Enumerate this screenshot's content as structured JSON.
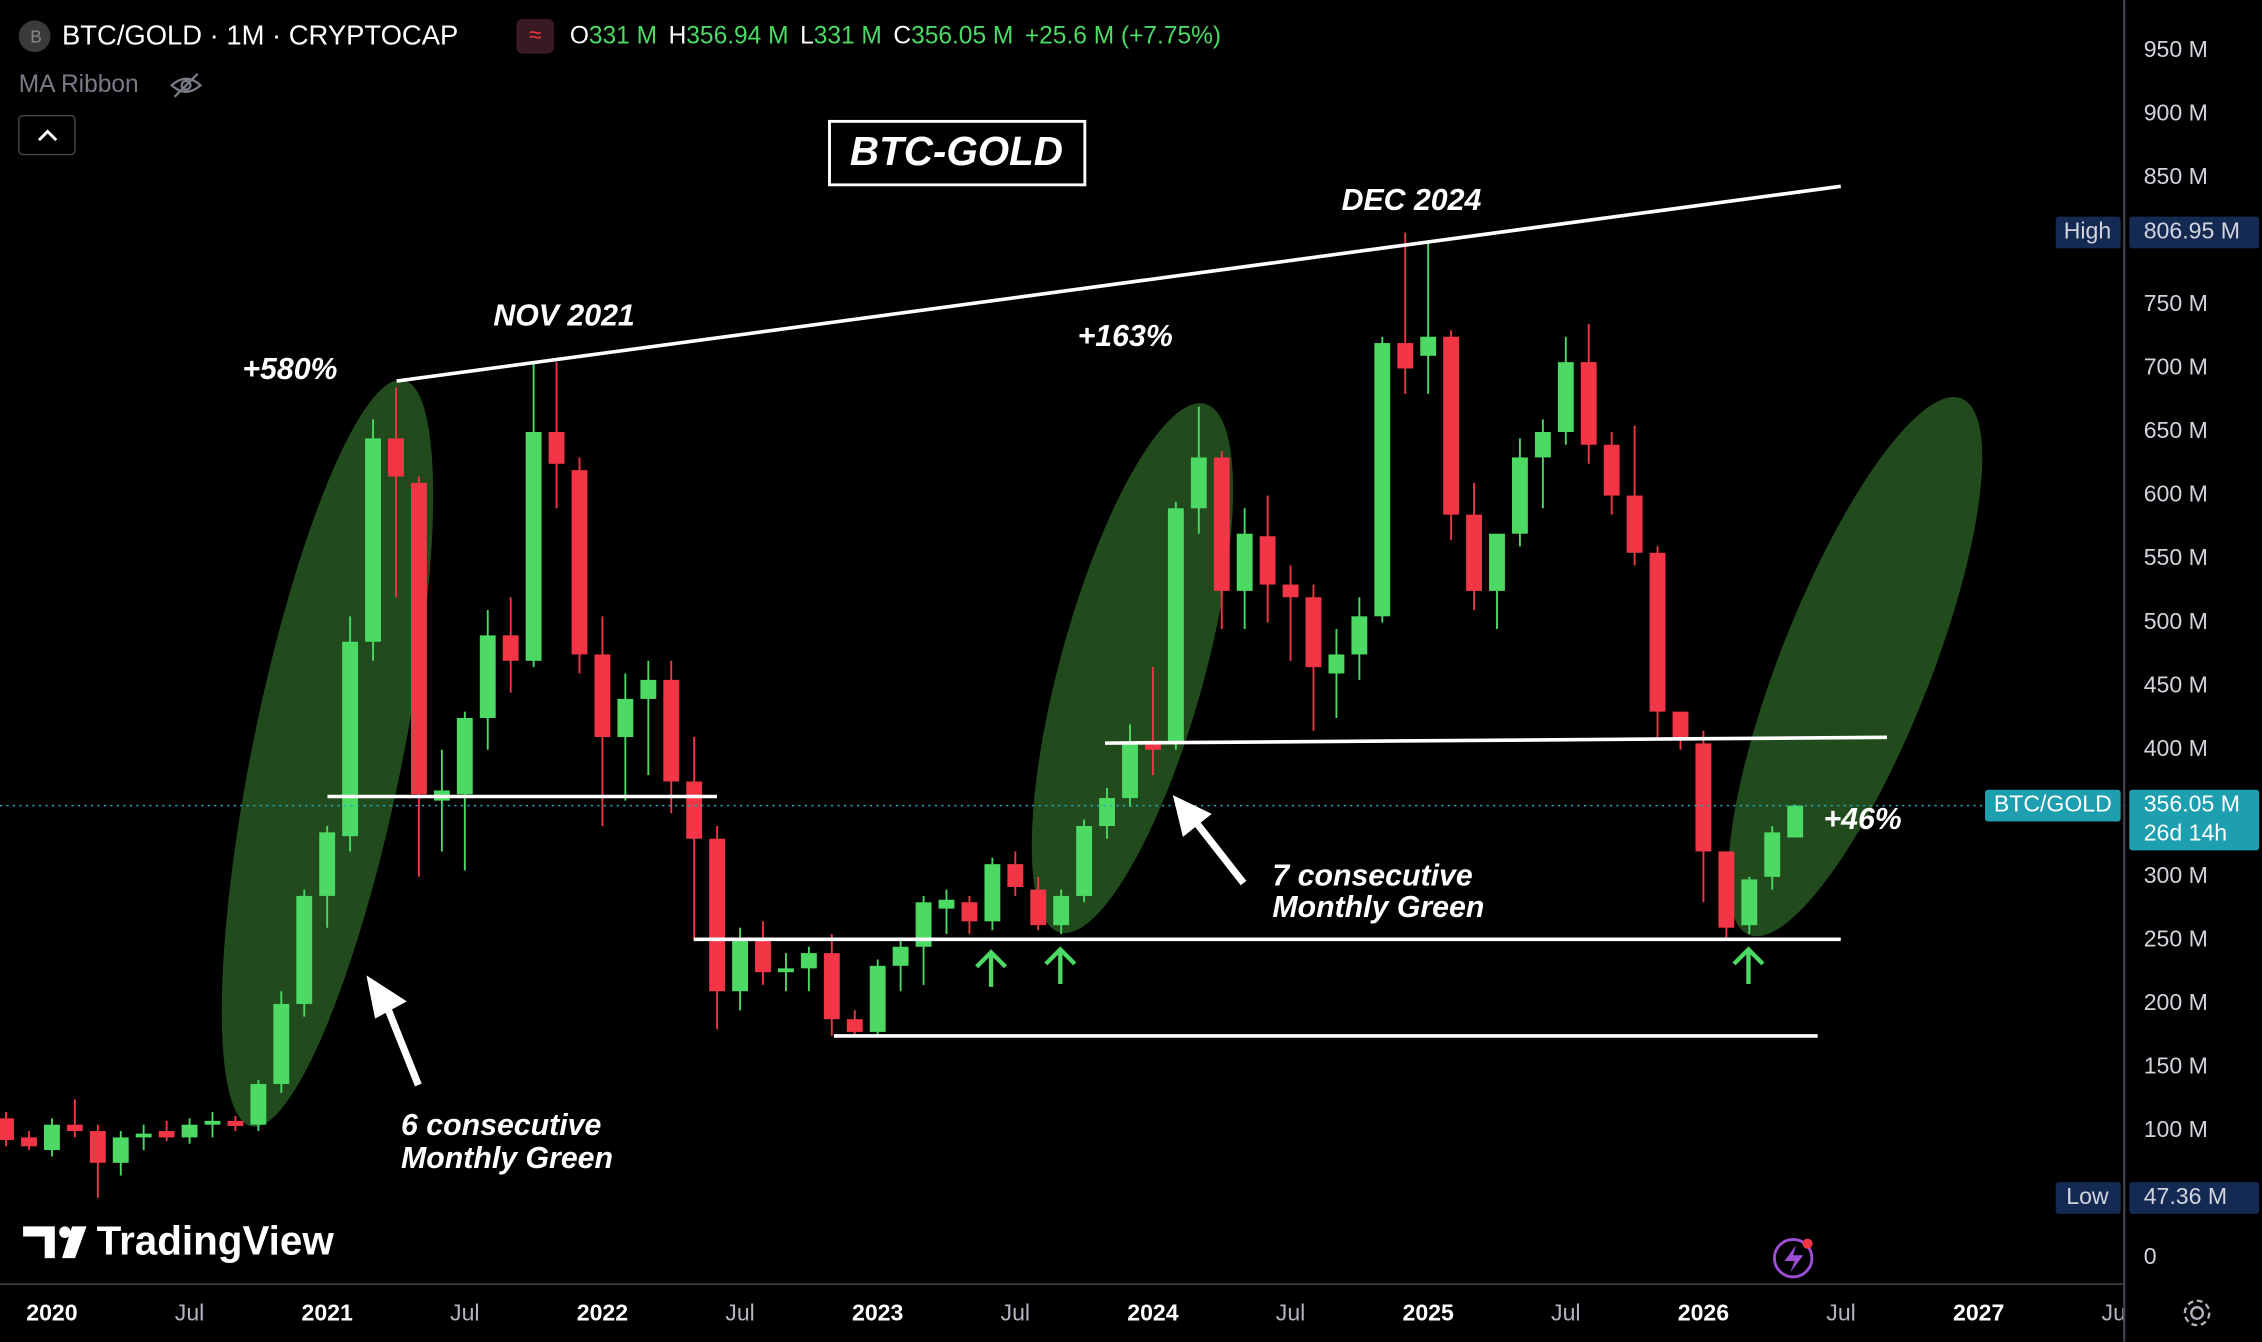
{
  "header": {
    "symbol": "BTC/GOLD · 1M · CRYPTOCAP",
    "o_label": "O",
    "o": "331 M",
    "h_label": "H",
    "h": "356.94 M",
    "l_label": "L",
    "l": "331 M",
    "c_label": "C",
    "c": "356.05 M",
    "change": "+25.6 M (+7.75%)",
    "indicator": "MA Ribbon"
  },
  "watermark": "TradingView",
  "chart_data": {
    "type": "candlestick",
    "title": "BTC-GOLD",
    "x": [
      2019.8333,
      2019.9167,
      2020,
      2020.0833,
      2020.1667,
      2020.25,
      2020.3333,
      2020.4167,
      2020.5,
      2020.5833,
      2020.6667,
      2020.75,
      2020.8333,
      2020.9167,
      2021,
      2021.0833,
      2021.1667,
      2021.25,
      2021.3333,
      2021.4167,
      2021.5,
      2021.5833,
      2021.6667,
      2021.75,
      2021.8333,
      2021.9167,
      2022,
      2022.0833,
      2022.1667,
      2022.25,
      2022.3333,
      2022.4167,
      2022.5,
      2022.5833,
      2022.6667,
      2022.75,
      2022.8333,
      2022.9167,
      2023,
      2023.0833,
      2023.1667,
      2023.25,
      2023.3333,
      2023.4167,
      2023.5,
      2023.5833,
      2023.6667,
      2023.75,
      2023.8333,
      2023.9167,
      2024,
      2024.0833,
      2024.1667,
      2024.25,
      2024.3333,
      2024.4167,
      2024.5,
      2024.5833,
      2024.6667,
      2024.75,
      2024.8333,
      2024.9167,
      2025,
      2025.0833,
      2025.1667,
      2025.25,
      2025.3333,
      2025.4167,
      2025.5,
      2025.5833,
      2025.6667,
      2025.75,
      2025.8333,
      2025.9167,
      2026,
      2026.0833,
      2026.1667,
      2026.25,
      2026.3333
    ],
    "open": [
      110,
      95,
      85,
      105,
      100,
      75,
      95,
      100,
      95,
      105,
      108,
      105,
      137,
      200,
      285,
      332,
      485,
      645,
      610,
      360,
      365,
      425,
      490,
      470,
      650,
      620,
      475,
      410,
      440,
      455,
      375,
      330,
      210,
      250,
      225,
      228,
      240,
      188,
      178,
      230,
      245,
      275,
      280,
      265,
      310,
      290,
      262,
      285,
      340,
      362,
      407,
      405,
      590,
      630,
      525,
      568,
      530,
      520,
      460,
      475,
      505,
      720,
      710,
      725,
      585,
      525,
      570,
      630,
      650,
      705,
      640,
      600,
      555,
      430,
      405,
      320,
      262,
      300,
      331
    ],
    "high": [
      115,
      100,
      110,
      125,
      105,
      100,
      105,
      108,
      110,
      115,
      112,
      140,
      210,
      290,
      340,
      505,
      660,
      685,
      615,
      400,
      430,
      510,
      520,
      705,
      705,
      630,
      505,
      460,
      470,
      470,
      410,
      340,
      260,
      265,
      240,
      245,
      255,
      195,
      235,
      250,
      285,
      290,
      285,
      315,
      320,
      300,
      290,
      345,
      370,
      420,
      465,
      595,
      670,
      635,
      590,
      600,
      545,
      530,
      495,
      520,
      725,
      806.95,
      800,
      730,
      610,
      565,
      645,
      660,
      725,
      735,
      650,
      655,
      560,
      430,
      415,
      320,
      300,
      340,
      356.94
    ],
    "low": [
      88,
      85,
      80,
      95,
      47.36,
      65,
      85,
      92,
      90,
      95,
      100,
      100,
      130,
      190,
      260,
      320,
      470,
      520,
      300,
      320,
      305,
      400,
      445,
      465,
      590,
      460,
      340,
      360,
      380,
      350,
      250,
      180,
      195,
      215,
      210,
      210,
      175,
      175,
      175,
      210,
      215,
      255,
      255,
      258,
      285,
      258,
      255,
      280,
      330,
      355,
      380,
      400,
      570,
      495,
      495,
      500,
      470,
      415,
      425,
      455,
      500,
      680,
      680,
      565,
      510,
      495,
      560,
      590,
      640,
      625,
      585,
      545,
      410,
      400,
      280,
      250,
      255,
      290,
      331
    ],
    "close": [
      93,
      88,
      105,
      100,
      75,
      95,
      98,
      95,
      105,
      108,
      104,
      137,
      200,
      285,
      335,
      485,
      645,
      615,
      365,
      368,
      425,
      490,
      470,
      650,
      625,
      475,
      410,
      440,
      455,
      375,
      330,
      210,
      250,
      225,
      228,
      240,
      188,
      178,
      230,
      245,
      280,
      282,
      265,
      310,
      292,
      262,
      285,
      340,
      362,
      405,
      400,
      590,
      630,
      525,
      570,
      530,
      520,
      465,
      475,
      505,
      720,
      700,
      725,
      585,
      525,
      570,
      630,
      650,
      705,
      640,
      600,
      555,
      430,
      410,
      320,
      260,
      298,
      335,
      356.05
    ],
    "up_color": "#4cd964",
    "down_color": "#f23645",
    "xlim": [
      2019.8113,
      2027.5262
    ],
    "ylim": [
      -20.43,
      989.78
    ],
    "xticks": [
      2020,
      {
        "value": 2020.5,
        "label": "Jul"
      },
      2021,
      {
        "value": 2021.5,
        "label": "Jul"
      },
      2022,
      {
        "value": 2022.5,
        "label": "Jul"
      },
      2023,
      {
        "value": 2023.5,
        "label": "Jul"
      },
      2024,
      {
        "value": 2024.5,
        "label": "Jul"
      },
      2025,
      {
        "value": 2025.5,
        "label": "Jul"
      },
      2026,
      {
        "value": 2026.5,
        "label": "Jul"
      },
      2027,
      {
        "value": 2027.5,
        "label": "Jul"
      }
    ],
    "yticks": [
      0,
      {
        "value": 100,
        "label": "100 M"
      },
      {
        "value": 150,
        "label": "150 M"
      },
      {
        "value": 200,
        "label": "200 M"
      },
      {
        "value": 250,
        "label": "250 M"
      },
      {
        "value": 300,
        "label": "300 M"
      },
      {
        "value": 400,
        "label": "400 M"
      },
      {
        "value": 450,
        "label": "450 M"
      },
      {
        "value": 500,
        "label": "500 M"
      },
      {
        "value": 550,
        "label": "550 M"
      },
      {
        "value": 600,
        "label": "600 M"
      },
      {
        "value": 650,
        "label": "650 M"
      },
      {
        "value": 700,
        "label": "700 M"
      },
      {
        "value": 750,
        "label": "750 M"
      },
      {
        "value": 850,
        "label": "850 M"
      },
      {
        "value": 900,
        "label": "900 M"
      },
      {
        "value": 950,
        "label": "950 M"
      }
    ],
    "high_marker": {
      "label": "High",
      "value": 806.95,
      "value_label": "806.95 M"
    },
    "low_marker": {
      "label": "Low",
      "value": 47.36,
      "value_label": "47.36 M"
    },
    "last_price": {
      "label": "BTC/GOLD",
      "value": 356.05,
      "value_label": "356.05 M",
      "countdown": "26d 14h"
    },
    "annotations": [
      "+580%",
      "NOV 2021",
      "+163%",
      "DEC 2024",
      "+46%",
      "6 consecutive",
      "Monthly Green",
      "7 consecutive",
      "Monthly Green"
    ]
  }
}
